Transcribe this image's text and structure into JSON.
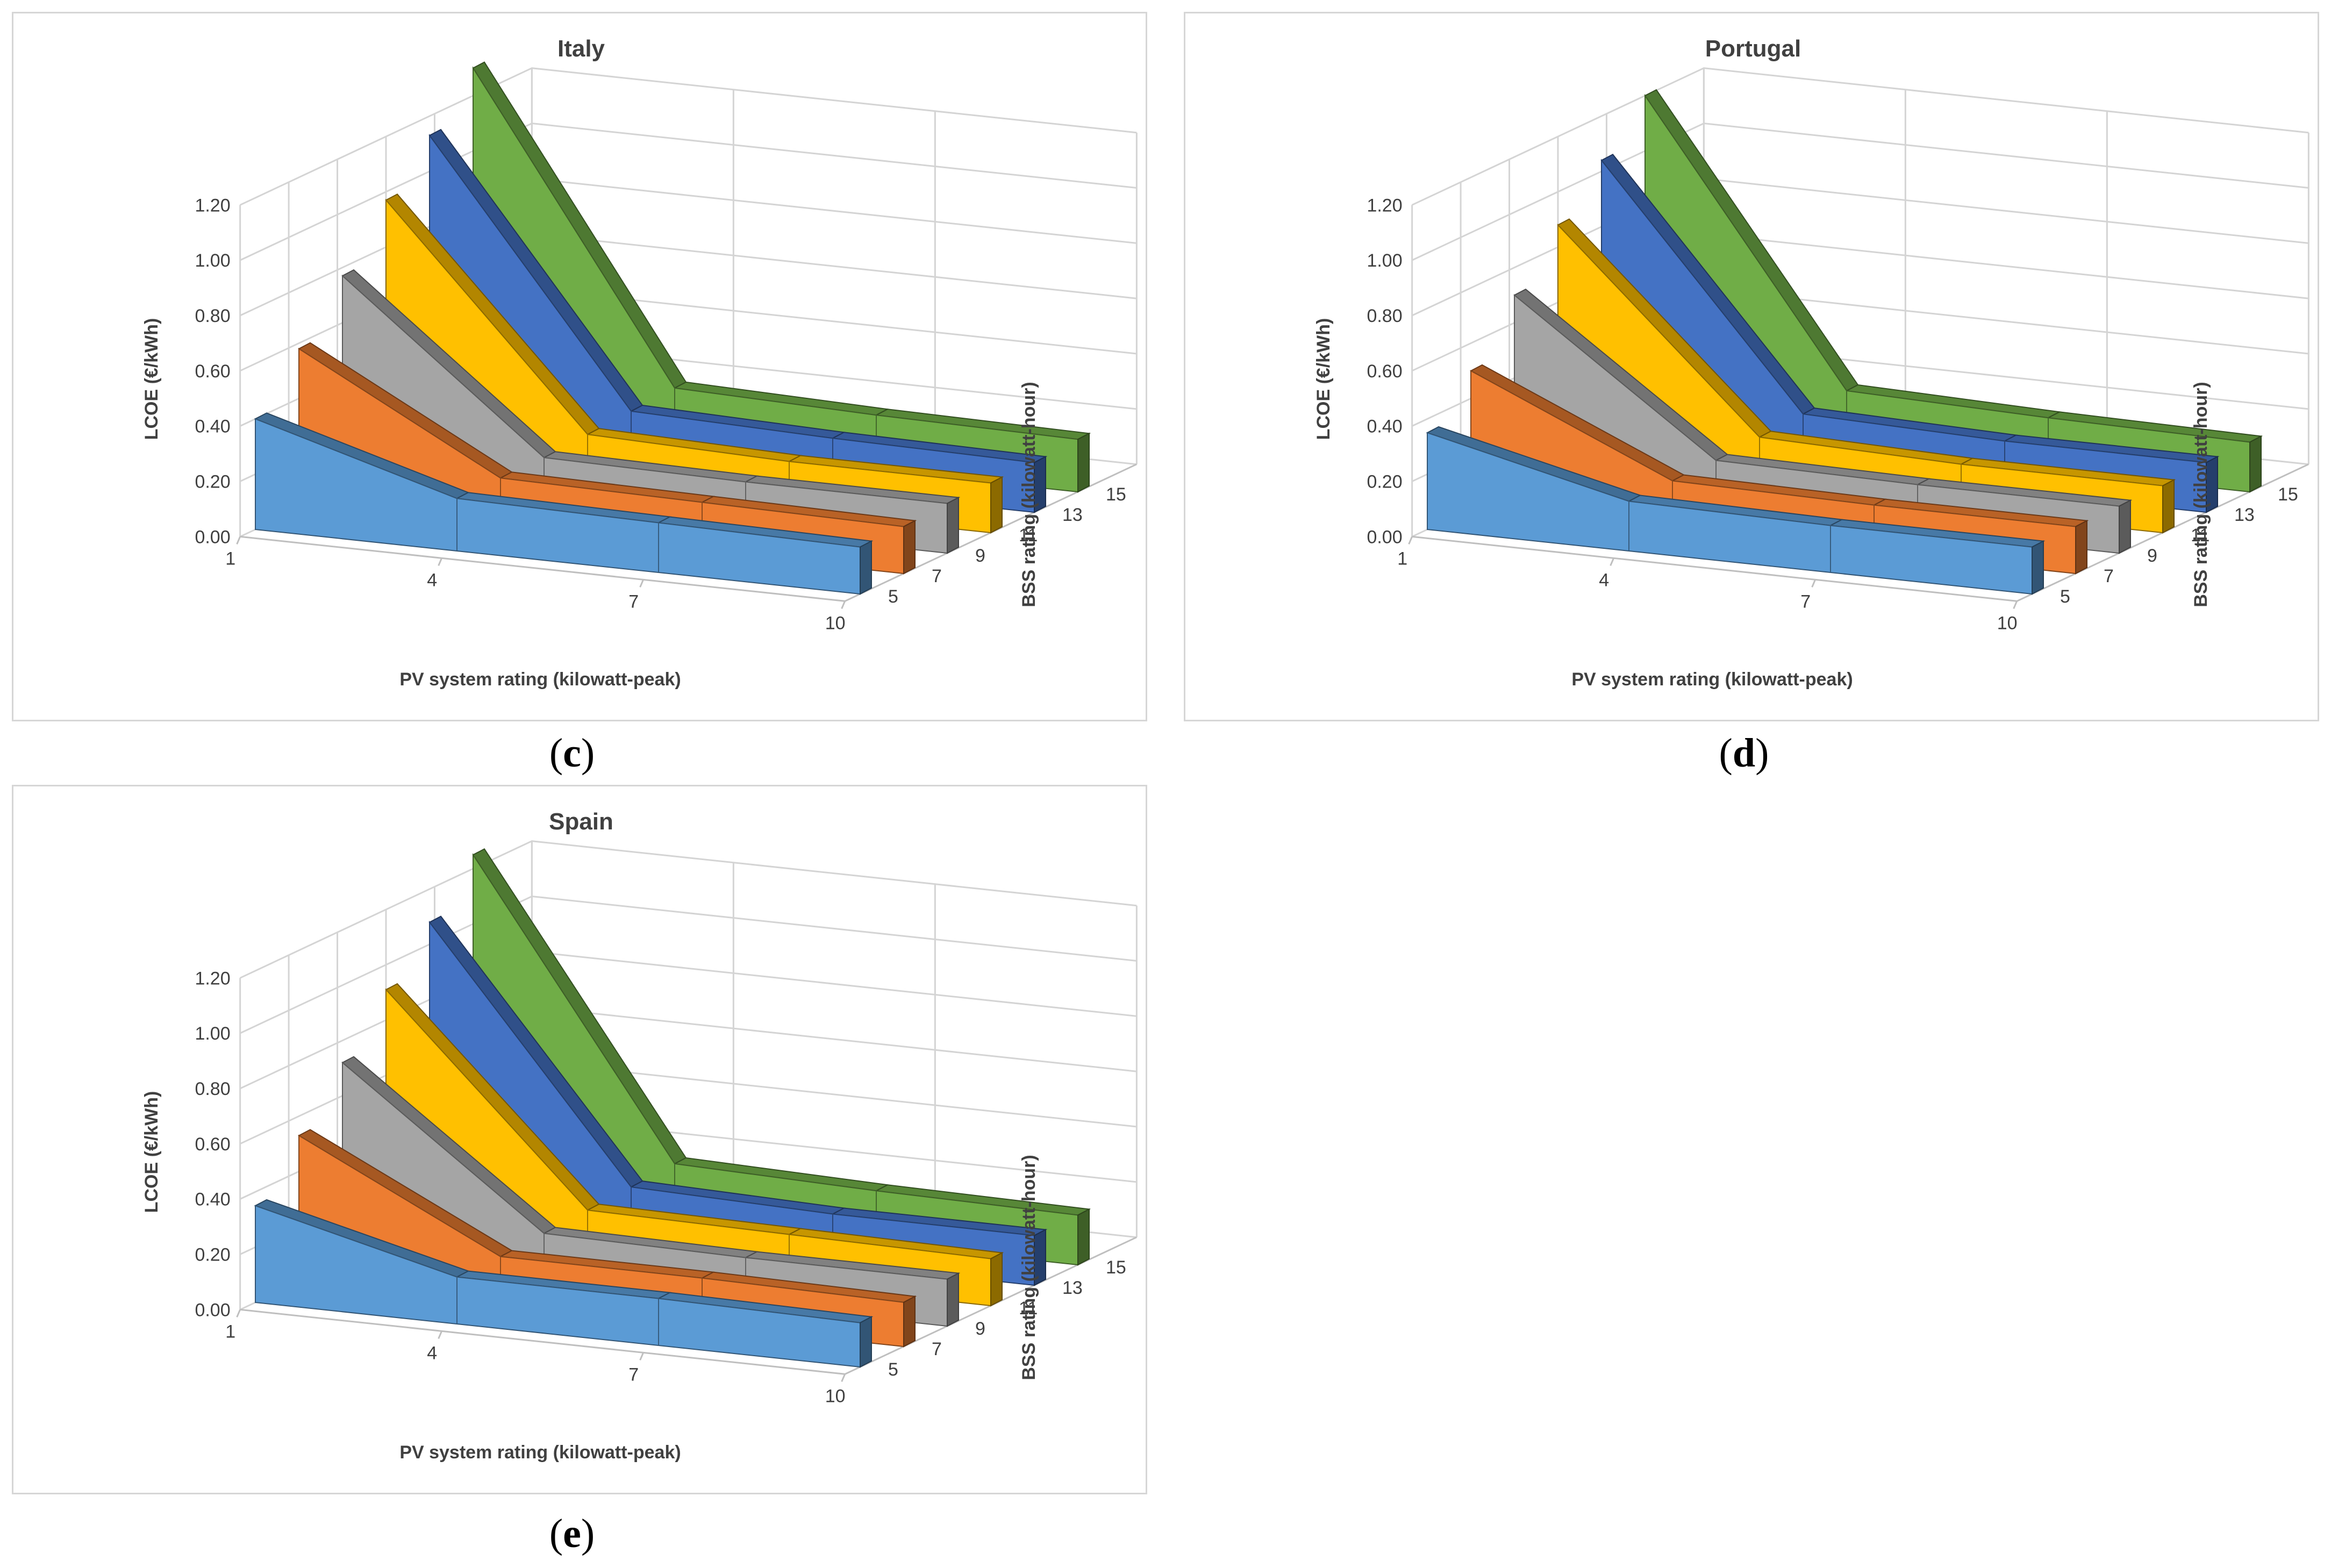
{
  "chart_data": [
    {
      "type": "area",
      "title": "Italy",
      "xlabel": "PV system rating (kilowatt-peak)",
      "ylabel": "LCOE (€/kWh)",
      "zlabel": "BSS rating (kilowatt-hour)",
      "x": [
        1,
        4,
        7,
        10
      ],
      "yticks": [
        "0.00",
        "0.20",
        "0.40",
        "0.60",
        "0.80",
        "1.00",
        "1.20"
      ],
      "ylim": [
        0,
        1.2
      ],
      "grid": true,
      "series": [
        {
          "name": "5",
          "color": "#5b9bd5",
          "values": [
            0.4,
            0.19,
            0.18,
            0.17
          ]
        },
        {
          "name": "7",
          "color": "#ed7d31",
          "values": [
            0.58,
            0.19,
            0.18,
            0.17
          ]
        },
        {
          "name": "9",
          "color": "#a5a5a5",
          "values": [
            0.77,
            0.19,
            0.18,
            0.18
          ]
        },
        {
          "name": "11",
          "color": "#ffc000",
          "values": [
            0.97,
            0.2,
            0.18,
            0.18
          ]
        },
        {
          "name": "13",
          "color": "#4472c4",
          "values": [
            1.13,
            0.21,
            0.19,
            0.18
          ]
        },
        {
          "name": "15",
          "color": "#70ad47",
          "values": [
            1.3,
            0.22,
            0.2,
            0.19
          ]
        }
      ]
    },
    {
      "type": "area",
      "title": "Portugal",
      "xlabel": "PV system rating (kilowatt-peak)",
      "ylabel": "LCOE (€/kWh)",
      "zlabel": "BSS rating (kilowatt-hour)",
      "x": [
        1,
        4,
        7,
        10
      ],
      "yticks": [
        "0.00",
        "0.20",
        "0.40",
        "0.60",
        "0.80",
        "1.00",
        "1.20"
      ],
      "ylim": [
        0,
        1.2
      ],
      "grid": true,
      "series": [
        {
          "name": "5",
          "color": "#5b9bd5",
          "values": [
            0.35,
            0.18,
            0.17,
            0.17
          ]
        },
        {
          "name": "7",
          "color": "#ed7d31",
          "values": [
            0.5,
            0.18,
            0.17,
            0.17
          ]
        },
        {
          "name": "9",
          "color": "#a5a5a5",
          "values": [
            0.7,
            0.18,
            0.17,
            0.17
          ]
        },
        {
          "name": "11",
          "color": "#ffc000",
          "values": [
            0.88,
            0.19,
            0.17,
            0.17
          ]
        },
        {
          "name": "13",
          "color": "#4472c4",
          "values": [
            1.04,
            0.2,
            0.18,
            0.18
          ]
        },
        {
          "name": "15",
          "color": "#70ad47",
          "values": [
            1.2,
            0.21,
            0.19,
            0.18
          ]
        }
      ]
    },
    {
      "type": "area",
      "title": "Spain",
      "xlabel": "PV system rating (kilowatt-peak)",
      "ylabel": "LCOE (€/kWh)",
      "zlabel": "BSS rating (kilowatt-hour)",
      "x": [
        1,
        4,
        7,
        10
      ],
      "yticks": [
        "0.00",
        "0.20",
        "0.40",
        "0.60",
        "0.80",
        "1.00",
        "1.20"
      ],
      "ylim": [
        0,
        1.2
      ],
      "grid": true,
      "series": [
        {
          "name": "5",
          "color": "#5b9bd5",
          "values": [
            0.35,
            0.17,
            0.17,
            0.16
          ]
        },
        {
          "name": "7",
          "color": "#ed7d31",
          "values": [
            0.53,
            0.17,
            0.17,
            0.16
          ]
        },
        {
          "name": "9",
          "color": "#a5a5a5",
          "values": [
            0.72,
            0.18,
            0.17,
            0.17
          ]
        },
        {
          "name": "11",
          "color": "#ffc000",
          "values": [
            0.91,
            0.19,
            0.18,
            0.17
          ]
        },
        {
          "name": "13",
          "color": "#4472c4",
          "values": [
            1.08,
            0.2,
            0.18,
            0.18
          ]
        },
        {
          "name": "15",
          "color": "#70ad47",
          "values": [
            1.25,
            0.21,
            0.19,
            0.18
          ]
        }
      ]
    }
  ],
  "captions": [
    "c",
    "d",
    "e"
  ]
}
